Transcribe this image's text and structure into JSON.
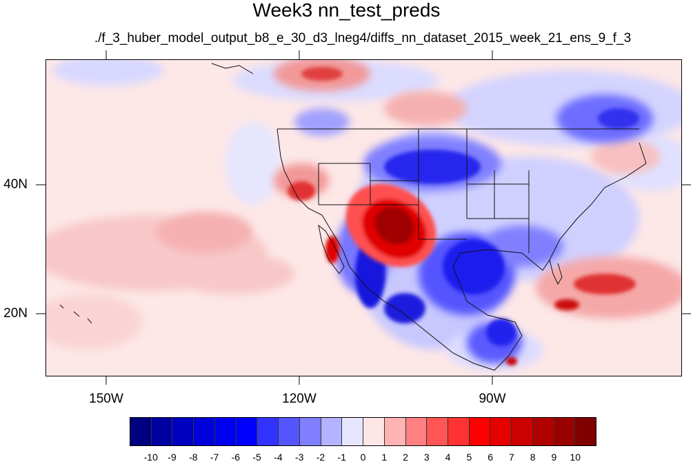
{
  "title": "Week3 nn_test_preds",
  "subtitle": "./f_3_huber_model_output_b8_e_30_d3_lneg4/diffs_nn_dataset_2015_week_21_ens_9_f_3",
  "map": {
    "projection": "cylindrical equidistant",
    "lon_range": [
      -160,
      -62
    ],
    "lat_range": [
      11,
      60
    ],
    "lat_tick_labels": [
      "40N",
      "20N"
    ],
    "lon_tick_labels": [
      "150W",
      "120W",
      "90W"
    ]
  },
  "colorbar": {
    "labels": [
      "-10",
      "-9",
      "-8",
      "-7",
      "-6",
      "-5",
      "-4",
      "-3",
      "-2",
      "-1",
      "0",
      "1",
      "2",
      "3",
      "4",
      "5",
      "6",
      "7",
      "8",
      "9",
      "10"
    ],
    "colors": [
      "#000080",
      "#0000a0",
      "#0000c0",
      "#0000d8",
      "#0000f0",
      "#0000ff",
      "#3333ff",
      "#5555ff",
      "#8080ff",
      "#b3b3ff",
      "#e6e6ff",
      "#ffe6e6",
      "#ffb3b3",
      "#ff8080",
      "#ff5555",
      "#ff3333",
      "#ff0000",
      "#e60000",
      "#cc0000",
      "#b00000",
      "#990000",
      "#800000"
    ]
  }
}
